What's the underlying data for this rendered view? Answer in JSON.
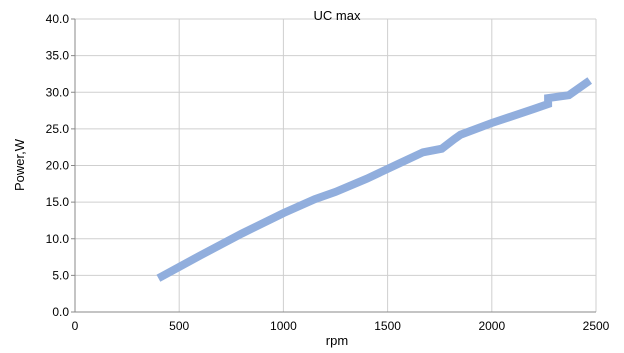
{
  "chart_data": {
    "type": "line",
    "title": "UC max",
    "xlabel": "rpm",
    "ylabel": "Power,W",
    "xlim": [
      0,
      2500
    ],
    "ylim": [
      0,
      40
    ],
    "x_ticks": [
      0,
      500,
      1000,
      1500,
      2000,
      2500
    ],
    "x_tick_labels": [
      "0",
      "500",
      "1000",
      "1500",
      "2000",
      "2500"
    ],
    "y_ticks": [
      0,
      5,
      10,
      15,
      20,
      25,
      30,
      35,
      40
    ],
    "y_tick_labels": [
      "0.0",
      "5.0",
      "10.0",
      "15.0",
      "20.0",
      "25.0",
      "30.0",
      "35.0",
      "40.0"
    ],
    "grid": true,
    "series": [
      {
        "color": "#91aedd",
        "points": [
          [
            400,
            4.6
          ],
          [
            600,
            7.7
          ],
          [
            800,
            10.7
          ],
          [
            1000,
            13.5
          ],
          [
            1150,
            15.4
          ],
          [
            1250,
            16.4
          ],
          [
            1400,
            18.2
          ],
          [
            1550,
            20.2
          ],
          [
            1670,
            21.8
          ],
          [
            1760,
            22.3
          ],
          [
            1820,
            23.6
          ],
          [
            1850,
            24.2
          ],
          [
            2000,
            25.8
          ],
          [
            2200,
            27.7
          ],
          [
            2270,
            28.4
          ],
          [
            2270,
            29.2
          ],
          [
            2370,
            29.6
          ],
          [
            2470,
            31.6
          ]
        ]
      }
    ]
  }
}
